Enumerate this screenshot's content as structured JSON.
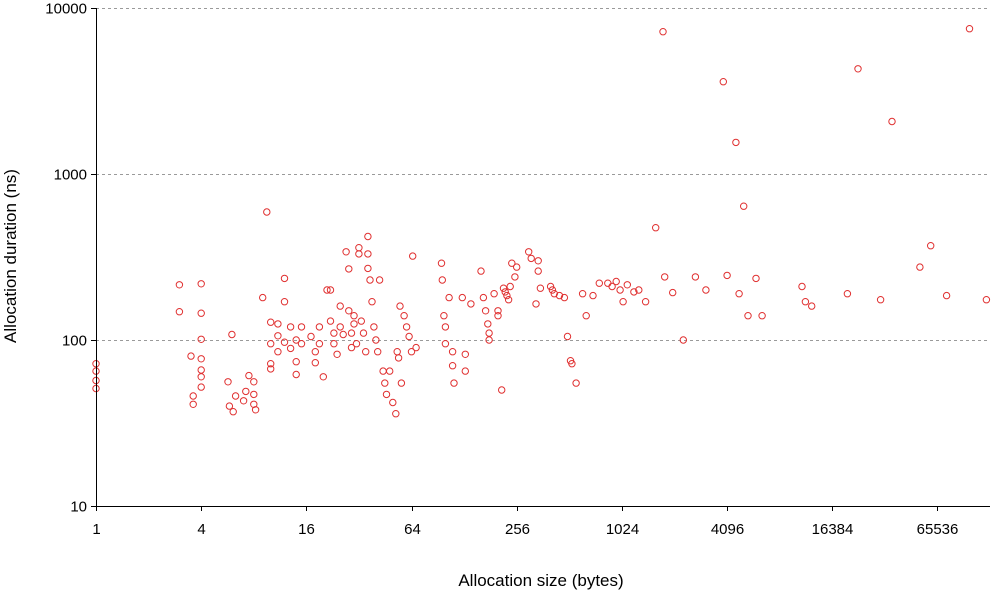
{
  "chart_data": {
    "type": "scatter",
    "x_scale": "log2",
    "y_scale": "log10",
    "xlabel": "Allocation size (bytes)",
    "ylabel": "Allocation duration (ns)",
    "xlim": [
      1,
      131072
    ],
    "ylim": [
      10,
      10000
    ],
    "x_ticks": [
      1,
      4,
      16,
      64,
      256,
      1024,
      4096,
      16384,
      65536
    ],
    "x_tick_labels": [
      "1",
      "4",
      "16",
      "64",
      "256",
      "1024",
      "4096",
      "16384",
      "65536"
    ],
    "y_ticks": [
      10,
      100,
      1000,
      10000
    ],
    "y_tick_labels": [
      "10",
      "100",
      "1000",
      "10000"
    ],
    "grid": "horizontal dashed",
    "marker": "open circle",
    "color": "#e03030",
    "points": [
      [
        1,
        72
      ],
      [
        1,
        65
      ],
      [
        1,
        57
      ],
      [
        1,
        51
      ],
      [
        3,
        215
      ],
      [
        3,
        148
      ],
      [
        3.5,
        80
      ],
      [
        3.6,
        46
      ],
      [
        3.6,
        41
      ],
      [
        4,
        218
      ],
      [
        4,
        145
      ],
      [
        4,
        101
      ],
      [
        4,
        77
      ],
      [
        4,
        66
      ],
      [
        4,
        60
      ],
      [
        4,
        52
      ],
      [
        6,
        108
      ],
      [
        5.8,
        40
      ],
      [
        6.1,
        37
      ],
      [
        6.3,
        46
      ],
      [
        5.7,
        56
      ],
      [
        7,
        43
      ],
      [
        7.2,
        49
      ],
      [
        7.5,
        61
      ],
      [
        8,
        56
      ],
      [
        8,
        47
      ],
      [
        8,
        41
      ],
      [
        8.2,
        38
      ],
      [
        9,
        180
      ],
      [
        9.5,
        590
      ],
      [
        10,
        128
      ],
      [
        10,
        95
      ],
      [
        10,
        72
      ],
      [
        10,
        67
      ],
      [
        11,
        125
      ],
      [
        11,
        106
      ],
      [
        11,
        85
      ],
      [
        12,
        235
      ],
      [
        12,
        170
      ],
      [
        12,
        97
      ],
      [
        13,
        120
      ],
      [
        13,
        89
      ],
      [
        14,
        100
      ],
      [
        14,
        74
      ],
      [
        14,
        62
      ],
      [
        15,
        120
      ],
      [
        15,
        95
      ],
      [
        17,
        105
      ],
      [
        18,
        85
      ],
      [
        18,
        73
      ],
      [
        19,
        120
      ],
      [
        19,
        95
      ],
      [
        20,
        60
      ],
      [
        21,
        200
      ],
      [
        22,
        200
      ],
      [
        22,
        130
      ],
      [
        23,
        110
      ],
      [
        23,
        95
      ],
      [
        24,
        82
      ],
      [
        25,
        160
      ],
      [
        25,
        120
      ],
      [
        26,
        108
      ],
      [
        27,
        340
      ],
      [
        28,
        268
      ],
      [
        28,
        150
      ],
      [
        29,
        110
      ],
      [
        29,
        90
      ],
      [
        30,
        140
      ],
      [
        30,
        125
      ],
      [
        31,
        95
      ],
      [
        32,
        360
      ],
      [
        32,
        330
      ],
      [
        33,
        130
      ],
      [
        34,
        110
      ],
      [
        35,
        85
      ],
      [
        36,
        420
      ],
      [
        36,
        330
      ],
      [
        36,
        270
      ],
      [
        37,
        230
      ],
      [
        38,
        170
      ],
      [
        39,
        120
      ],
      [
        40,
        100
      ],
      [
        41,
        85
      ],
      [
        42,
        230
      ],
      [
        44,
        65
      ],
      [
        45,
        55
      ],
      [
        46,
        47
      ],
      [
        48,
        65
      ],
      [
        50,
        42
      ],
      [
        52,
        36
      ],
      [
        53,
        85
      ],
      [
        54,
        78
      ],
      [
        55,
        160
      ],
      [
        56,
        55
      ],
      [
        58,
        140
      ],
      [
        60,
        120
      ],
      [
        62,
        105
      ],
      [
        64,
        85
      ],
      [
        65,
        320
      ],
      [
        68,
        90
      ],
      [
        95,
        290
      ],
      [
        96,
        230
      ],
      [
        98,
        140
      ],
      [
        100,
        120
      ],
      [
        100,
        95
      ],
      [
        105,
        180
      ],
      [
        110,
        85
      ],
      [
        110,
        70
      ],
      [
        112,
        55
      ],
      [
        125,
        180
      ],
      [
        130,
        82
      ],
      [
        130,
        65
      ],
      [
        140,
        165
      ],
      [
        160,
        260
      ],
      [
        165,
        180
      ],
      [
        170,
        150
      ],
      [
        175,
        125
      ],
      [
        178,
        110
      ],
      [
        178,
        100
      ],
      [
        190,
        190
      ],
      [
        200,
        150
      ],
      [
        200,
        140
      ],
      [
        210,
        50
      ],
      [
        215,
        205
      ],
      [
        220,
        195
      ],
      [
        225,
        185
      ],
      [
        230,
        175
      ],
      [
        235,
        210
      ],
      [
        240,
        290
      ],
      [
        250,
        240
      ],
      [
        256,
        275
      ],
      [
        300,
        340
      ],
      [
        310,
        310
      ],
      [
        330,
        165
      ],
      [
        340,
        300
      ],
      [
        340,
        260
      ],
      [
        350,
        205
      ],
      [
        400,
        210
      ],
      [
        410,
        200
      ],
      [
        420,
        190
      ],
      [
        450,
        185
      ],
      [
        480,
        180
      ],
      [
        500,
        105
      ],
      [
        520,
        75
      ],
      [
        530,
        72
      ],
      [
        560,
        55
      ],
      [
        610,
        190
      ],
      [
        640,
        140
      ],
      [
        700,
        185
      ],
      [
        760,
        220
      ],
      [
        850,
        220
      ],
      [
        900,
        210
      ],
      [
        950,
        225
      ],
      [
        1000,
        200
      ],
      [
        1040,
        170
      ],
      [
        1100,
        215
      ],
      [
        1200,
        195
      ],
      [
        1280,
        200
      ],
      [
        1400,
        170
      ],
      [
        1600,
        475
      ],
      [
        1800,
        240
      ],
      [
        2000,
        193
      ],
      [
        2300,
        100
      ],
      [
        2700,
        240
      ],
      [
        3100,
        200
      ],
      [
        3900,
        3600
      ],
      [
        4100,
        245
      ],
      [
        4600,
        1550
      ],
      [
        4800,
        190
      ],
      [
        5100,
        640
      ],
      [
        5400,
        140
      ],
      [
        6000,
        235
      ],
      [
        6500,
        140
      ],
      [
        11000,
        210
      ],
      [
        11500,
        170
      ],
      [
        12500,
        160
      ],
      [
        20000,
        190
      ],
      [
        23000,
        4300
      ],
      [
        31000,
        175
      ],
      [
        36000,
        2070
      ],
      [
        52000,
        275
      ],
      [
        60000,
        370
      ],
      [
        74000,
        185
      ],
      [
        100000,
        7500
      ],
      [
        125000,
        175
      ],
      [
        1760,
        7200
      ]
    ]
  }
}
